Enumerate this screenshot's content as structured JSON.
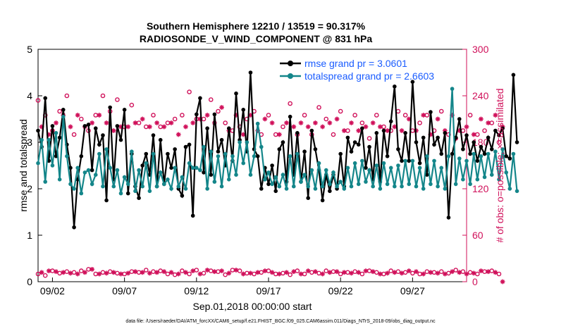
{
  "chart_data": {
    "type": "line",
    "title": "Southern Hemisphere 12210 / 13519 = 90.317%",
    "subtitle": "RADIOSONDE_V_WIND_COMPONENT @ 831 hPa",
    "xlabel": "Sep.01,2018 00:00:00 start",
    "ylabel": "rmse and totalspread",
    "y2label": "# of obs: o=possible; ×=assimilated",
    "footnote": "data file: /Users/raeder/DAI/ATM_forcXX/CAM6_setup/f.e21.FHIST_BGC.f09_025.CAM6assim.011/Diags_NTrS_2018-09/obs_diag_output.nc",
    "xlim": [
      1.0,
      30.75
    ],
    "ylim": [
      0,
      5
    ],
    "y2lim": [
      0,
      300
    ],
    "yticks": [
      "0",
      "1",
      "2",
      "3",
      "4",
      "5"
    ],
    "y2ticks": [
      "0",
      "60",
      "120",
      "180",
      "240",
      "300"
    ],
    "xticks": [
      {
        "day": 2,
        "label": "09/02"
      },
      {
        "day": 7,
        "label": "09/07"
      },
      {
        "day": 12,
        "label": "09/12"
      },
      {
        "day": 17,
        "label": "09/17"
      },
      {
        "day": 22,
        "label": "09/22"
      },
      {
        "day": 27,
        "label": "09/27"
      }
    ],
    "series": [
      {
        "name": "rmse",
        "legend": "rmse grand pr = 3.0601",
        "color": "#000000",
        "values": [
          3.25,
          2.9,
          3.95,
          2.6,
          3.35,
          2.7,
          3.1,
          3.7,
          2.95,
          2.45,
          1.17,
          2.2,
          2.7,
          3.35,
          3.38,
          2.4,
          3.3,
          2.95,
          3.15,
          1.75,
          3.75,
          2.2,
          3.35,
          3.05,
          3.7,
          1.9,
          2.75,
          2.05,
          1.8,
          2.5,
          2.75,
          2.3,
          3.15,
          2.05,
          3.05,
          2.1,
          2.75,
          2.45,
          2.85,
          2.0,
          1.85,
          2.9,
          2.95,
          1.42,
          3.6,
          3.95,
          2.35,
          3.3,
          2.3,
          3.6,
          2.8,
          3.05,
          2.5,
          3.3,
          2.6,
          4.05,
          3.05,
          3.7,
          2.8,
          4.5,
          2.85,
          2.7,
          2.0,
          2.45,
          2.1,
          2.5,
          1.95,
          2.85,
          3.0,
          2.15,
          3.55,
          2.3,
          3.2,
          2.15,
          2.8,
          1.8,
          3.25,
          2.85,
          2.4,
          1.75,
          2.3,
          1.95,
          2.3,
          2.0,
          2.75,
          2.05,
          3.1,
          2.8,
          3.0,
          2.95,
          3.3,
          2.45,
          2.9,
          2.2,
          3.2,
          2.15,
          3.25,
          2.7,
          3.45,
          4.2,
          2.85,
          2.6,
          3.2,
          2.6,
          4.3,
          3.0,
          2.55,
          3.1,
          2.3,
          3.65,
          2.95,
          3.1,
          2.75,
          3.2,
          1.38,
          2.75,
          3.1,
          3.5,
          2.85,
          3.15,
          2.75,
          3.0,
          2.6,
          2.9,
          2.75,
          3.1,
          2.85,
          3.25,
          3.15,
          3.3,
          2.7,
          2.65,
          4.45,
          3.0
        ],
        "x_start": 1.0,
        "x_step": 0.25
      },
      {
        "name": "totalspread",
        "legend": "totalspread grand pr = 2.6603",
        "color": "#14868a",
        "values": [
          2.55,
          3.05,
          2.15,
          3.05,
          2.5,
          3.2,
          2.2,
          3.55,
          2.7,
          2.1,
          2.0,
          2.45,
          1.9,
          2.35,
          2.4,
          2.1,
          2.3,
          2.75,
          2.05,
          2.85,
          2.45,
          2.05,
          2.4,
          1.9,
          2.25,
          2.1,
          2.8,
          1.95,
          2.4,
          2.05,
          2.55,
          1.95,
          2.75,
          2.05,
          2.35,
          2.1,
          2.2,
          2.0,
          2.45,
          2.05,
          2.25,
          2.0,
          2.55,
          2.45,
          2.45,
          2.4,
          2.9,
          2.0,
          2.8,
          2.15,
          2.7,
          2.05,
          2.75,
          2.2,
          2.7,
          2.3,
          3.0,
          2.55,
          3.0,
          2.3,
          2.7,
          3.4,
          2.9,
          2.2,
          2.35,
          2.1,
          2.25,
          2.05,
          2.3,
          2.0,
          2.7,
          2.05,
          2.75,
          2.15,
          2.3,
          2.05,
          2.4,
          2.0,
          2.55,
          2.05,
          2.4,
          2.1,
          2.35,
          2.05,
          2.15,
          2.0,
          2.45,
          2.05,
          2.55,
          2.1,
          2.6,
          2.15,
          2.4,
          2.05,
          2.5,
          2.0,
          2.55,
          2.1,
          2.45,
          2.05,
          2.5,
          2.05,
          2.6,
          2.1,
          2.6,
          2.05,
          2.45,
          2.0,
          2.7,
          2.1,
          2.6,
          2.05,
          2.45,
          2.0,
          2.7,
          4.15,
          2.1,
          2.65,
          2.2,
          2.6,
          2.1,
          2.75,
          2.2,
          2.7,
          2.25,
          2.75,
          2.3,
          2.8,
          2.2,
          2.85,
          2.35,
          2.0,
          2.75,
          1.95
        ],
        "x_start": 1.0,
        "x_step": 0.25
      }
    ],
    "obs_possible": [
      234,
      225,
      215,
      205,
      195,
      235,
      220,
      198,
      240,
      215,
      190,
      225,
      210,
      205,
      195,
      230,
      215,
      190,
      240,
      200,
      220,
      195,
      235,
      210,
      200,
      185,
      228,
      215,
      205,
      185,
      200,
      190,
      215,
      230,
      200,
      190,
      205,
      220,
      210,
      190,
      215,
      200,
      245,
      230,
      210,
      205,
      210,
      195,
      235,
      200,
      220,
      190,
      205,
      210,
      195,
      225,
      200,
      235,
      210,
      190,
      220,
      200,
      190,
      185,
      215,
      205,
      190,
      210,
      200,
      185,
      230,
      215,
      190,
      210,
      215,
      200,
      190,
      205,
      225,
      200,
      210,
      195,
      190,
      205,
      220,
      200,
      195,
      205,
      215,
      190,
      205,
      200,
      185,
      195,
      215,
      190,
      200,
      210,
      195,
      185,
      220,
      190,
      215,
      200,
      195,
      235,
      205,
      190,
      215,
      200,
      195,
      185,
      220,
      210,
      190,
      200,
      185,
      205,
      195,
      210,
      215,
      200,
      190,
      220,
      195,
      200,
      205,
      190,
      180,
      195
    ],
    "obs_assimilated": [
      205,
      200,
      195,
      190,
      210,
      205,
      195,
      215,
      190,
      200,
      195,
      215,
      210,
      200,
      225,
      205,
      200,
      215,
      190,
      205,
      215,
      195,
      220,
      200,
      210,
      200,
      190,
      205,
      195,
      210,
      215,
      200,
      195,
      205,
      220,
      200,
      215,
      205,
      200,
      190,
      210,
      200,
      215,
      205,
      195,
      210,
      200,
      215,
      195,
      205,
      200,
      225,
      210,
      195,
      200,
      215,
      205,
      190,
      200,
      215,
      205,
      195,
      200,
      210,
      195,
      205,
      200,
      190,
      215,
      205,
      195,
      200,
      210,
      205,
      215,
      200,
      195,
      205,
      215,
      200,
      190,
      205,
      195,
      210,
      200,
      195,
      220,
      205,
      200,
      195,
      210,
      200,
      215,
      205,
      195,
      200,
      210,
      195,
      205,
      200,
      215,
      195,
      200,
      210,
      205,
      195,
      200,
      215,
      205,
      190,
      200,
      210,
      205,
      195,
      200,
      215,
      210,
      195,
      205,
      200,
      215,
      190,
      200,
      210,
      195,
      205,
      200,
      215,
      195,
      200
    ],
    "obs_possible_low": [
      10,
      15,
      8,
      12,
      14,
      10,
      11,
      9,
      13,
      15,
      12,
      10,
      14,
      11,
      16,
      13,
      10,
      14,
      12,
      9,
      13,
      15,
      11,
      12,
      10,
      14,
      13,
      9,
      12,
      11,
      15,
      10,
      13,
      12,
      14,
      11,
      10,
      13,
      9,
      12,
      14,
      11,
      10,
      13,
      15,
      12,
      11,
      10,
      14,
      12,
      13,
      11,
      9,
      12,
      15,
      10,
      14,
      12,
      11,
      13,
      10,
      16,
      12,
      11,
      14,
      13,
      10,
      12,
      11,
      13,
      9,
      12,
      14,
      11,
      10,
      13,
      12,
      15,
      11,
      10,
      14,
      12,
      13,
      11,
      10,
      14,
      12,
      11,
      13,
      15,
      10,
      12,
      14,
      11,
      12,
      13,
      10,
      11,
      14,
      12,
      13,
      10,
      12,
      15,
      11,
      12,
      10,
      14,
      13,
      11,
      12,
      10,
      13,
      14,
      11,
      12,
      15,
      10,
      13,
      11,
      12,
      14,
      10,
      12,
      13,
      11,
      14,
      12,
      10,
      9
    ],
    "obs_assimilated_low": [
      5,
      12,
      10,
      14,
      11,
      13,
      10,
      12,
      15,
      11,
      13,
      10,
      14,
      12,
      11,
      16,
      12,
      10,
      14,
      11,
      13,
      12,
      15,
      10,
      12,
      11,
      14,
      13,
      10,
      12,
      13,
      11,
      14,
      12,
      10,
      13,
      11,
      12,
      14,
      10,
      13,
      12,
      11,
      14,
      13,
      10,
      12,
      15,
      11,
      13,
      10,
      14,
      12,
      11,
      13,
      15,
      12,
      10,
      14,
      11,
      13,
      12,
      10,
      14,
      11,
      12,
      13,
      10,
      14,
      12,
      11,
      13,
      15,
      10,
      12,
      14,
      11,
      13,
      12,
      10,
      14,
      12,
      11,
      13,
      10,
      12,
      14,
      11,
      13,
      12,
      10,
      14,
      11,
      13,
      12,
      10,
      14,
      11,
      13,
      12,
      15,
      11,
      10,
      14,
      12,
      13,
      11,
      10,
      14,
      12,
      13,
      11,
      14,
      10,
      12,
      13,
      11,
      12,
      14,
      10,
      13,
      11,
      12,
      14,
      10,
      13,
      11,
      12,
      8,
      0
    ],
    "colors": {
      "rmse": "#000000",
      "totalspread": "#14868a",
      "obs": "#d0105a",
      "legend_text": "#1a5cff",
      "axis": "#000000"
    }
  }
}
